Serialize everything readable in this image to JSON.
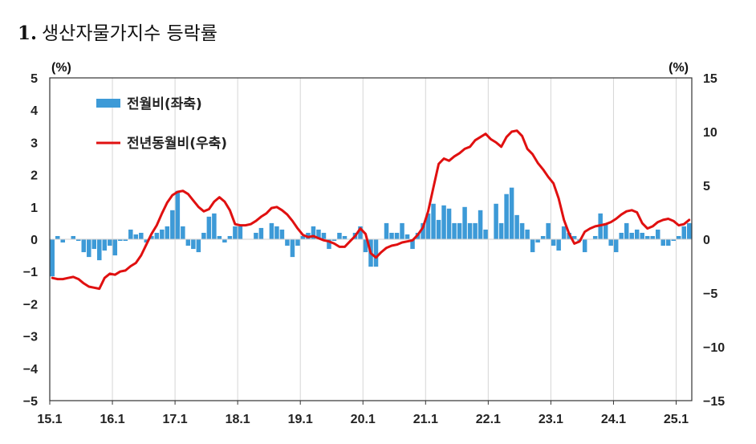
{
  "title": {
    "number": "1.",
    "text": "생산자물가지수 등락률"
  },
  "colors": {
    "bar": "#3d9ad7",
    "line": "#e01010",
    "grid": "#d6d6d6",
    "axis": "#333333"
  },
  "chart_data": {
    "type": "bar+line",
    "left_unit": "(%)",
    "right_unit": "(%)",
    "left_ylim": [
      -5,
      5
    ],
    "right_ylim": [
      -15,
      15
    ],
    "left_ticks": [
      "5",
      "4",
      "3",
      "2",
      "1",
      "0",
      "−1",
      "−2",
      "−3",
      "−4",
      "−5"
    ],
    "right_ticks": [
      "15",
      "10",
      "5",
      "0",
      "−5",
      "−10",
      "−15"
    ],
    "x_ticks": [
      "15.1",
      "16.1",
      "17.1",
      "18.1",
      "19.1",
      "20.1",
      "21.1",
      "22.1",
      "23.1",
      "24.1",
      "25.1"
    ],
    "legend": [
      {
        "label": "전월비(좌축)",
        "kind": "bar"
      },
      {
        "label": "전년동월비(우축)",
        "kind": "line"
      }
    ],
    "grid": "vertical",
    "series": [
      {
        "name": "전월비(좌축)",
        "axis": "left",
        "start": "15.1",
        "values": [
          -1.15,
          0.1,
          -0.1,
          0.0,
          0.1,
          -0.05,
          -0.4,
          -0.55,
          -0.3,
          -0.65,
          -0.35,
          -0.2,
          -0.5,
          -0.05,
          -0.05,
          0.3,
          0.15,
          0.2,
          -0.1,
          0.1,
          0.2,
          0.3,
          0.4,
          0.9,
          1.5,
          0.4,
          -0.2,
          -0.3,
          -0.4,
          0.2,
          0.7,
          0.8,
          0.1,
          -0.1,
          0.1,
          0.4,
          0.4,
          0.0,
          0.0,
          0.2,
          0.35,
          0.0,
          0.5,
          0.4,
          0.3,
          -0.2,
          -0.55,
          -0.2,
          0.1,
          0.2,
          0.4,
          0.3,
          0.2,
          -0.3,
          -0.05,
          0.2,
          0.1,
          0.0,
          0.2,
          0.4,
          -0.4,
          -0.85,
          -0.85,
          0.0,
          0.5,
          0.2,
          0.2,
          0.5,
          0.15,
          -0.3,
          0.2,
          0.5,
          0.8,
          1.1,
          0.6,
          1.05,
          0.95,
          0.5,
          0.5,
          1.0,
          0.5,
          0.5,
          0.9,
          0.3,
          0.0,
          1.1,
          0.5,
          1.4,
          1.6,
          0.75,
          0.5,
          0.3,
          -0.4,
          -0.1,
          0.1,
          0.5,
          -0.2,
          -0.35,
          0.4,
          0.2,
          0.1,
          -0.05,
          -0.4,
          0.0,
          0.1,
          0.8,
          0.5,
          -0.2,
          -0.4,
          0.2,
          0.5,
          0.2,
          0.3,
          0.2,
          0.1,
          0.1,
          0.3,
          -0.2,
          -0.2,
          -0.05,
          0.1,
          0.4,
          0.5
        ]
      },
      {
        "name": "전년동월비(우축)",
        "axis": "right",
        "start": "15.1",
        "values": [
          -3.6,
          -3.7,
          -3.7,
          -3.6,
          -3.5,
          -3.7,
          -4.1,
          -4.4,
          -4.5,
          -4.6,
          -3.6,
          -3.2,
          -3.3,
          -3.0,
          -2.9,
          -2.5,
          -2.2,
          -1.5,
          -0.5,
          0.5,
          1.3,
          2.4,
          3.4,
          4.1,
          4.4,
          4.5,
          4.2,
          3.6,
          3.0,
          2.6,
          2.8,
          3.5,
          3.9,
          3.5,
          2.7,
          1.4,
          1.3,
          1.3,
          1.4,
          1.7,
          2.1,
          2.4,
          2.9,
          3.0,
          2.7,
          2.3,
          1.7,
          1.0,
          0.4,
          0.2,
          0.3,
          0.1,
          -0.1,
          -0.2,
          -0.4,
          -0.7,
          -0.7,
          -0.2,
          0.3,
          1.0,
          0.5,
          -1.3,
          -1.7,
          -1.2,
          -0.8,
          -0.6,
          -0.5,
          -0.3,
          -0.2,
          -0.1,
          0.4,
          1.1,
          2.6,
          4.8,
          7.0,
          7.5,
          7.3,
          7.7,
          8.0,
          8.4,
          8.6,
          9.2,
          9.5,
          9.8,
          9.3,
          9.0,
          8.6,
          9.5,
          10.0,
          10.1,
          9.6,
          8.4,
          7.9,
          7.1,
          6.5,
          5.8,
          5.2,
          3.8,
          1.8,
          0.5,
          -0.4,
          -0.2,
          0.7,
          1.0,
          1.2,
          1.3,
          1.4,
          1.6,
          1.9,
          2.3,
          2.6,
          2.7,
          2.5,
          1.5,
          1.0,
          1.2,
          1.6,
          1.8,
          1.9,
          1.7,
          1.3,
          1.4,
          1.8
        ]
      }
    ]
  }
}
